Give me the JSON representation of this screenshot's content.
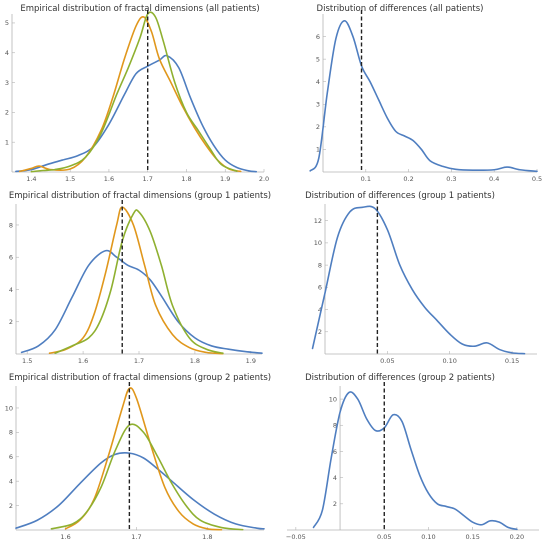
{
  "colors": {
    "blue": "#4f7ec0",
    "orange": "#e0971c",
    "green": "#8fb030",
    "ref": "#222222"
  },
  "chart_data": [
    {
      "id": "p1",
      "type": "line",
      "title": "Empirical distribution of fractal dimensions (all patients)",
      "xlim": [
        1.35,
        2.0
      ],
      "ylim": [
        0,
        5.3
      ],
      "xticks": [
        1.4,
        1.5,
        1.6,
        1.7,
        1.8,
        1.9,
        2.0
      ],
      "xtick_labels": [
        "1.4",
        "1.5",
        "1.6",
        "1.7",
        "1.8",
        "1.9",
        "2.0"
      ],
      "yticks": [
        1,
        2,
        3,
        4,
        5
      ],
      "vline": 1.7,
      "series": [
        {
          "color": "blue",
          "x": [
            1.36,
            1.4,
            1.44,
            1.48,
            1.52,
            1.56,
            1.6,
            1.64,
            1.67,
            1.7,
            1.73,
            1.75,
            1.78,
            1.81,
            1.84,
            1.87,
            1.9,
            1.93,
            1.96,
            1.98
          ],
          "y": [
            0.02,
            0.08,
            0.25,
            0.4,
            0.55,
            0.85,
            1.6,
            2.6,
            3.3,
            3.55,
            3.75,
            3.9,
            3.5,
            2.5,
            1.6,
            0.9,
            0.4,
            0.15,
            0.04,
            0.01
          ]
        },
        {
          "color": "orange",
          "x": [
            1.37,
            1.4,
            1.42,
            1.45,
            1.5,
            1.54,
            1.58,
            1.61,
            1.64,
            1.67,
            1.69,
            1.71,
            1.73,
            1.76,
            1.79,
            1.82,
            1.85,
            1.88,
            1.91,
            1.94
          ],
          "y": [
            0.02,
            0.12,
            0.2,
            0.08,
            0.1,
            0.5,
            1.4,
            2.5,
            3.8,
            4.9,
            5.2,
            4.7,
            3.8,
            3.0,
            2.2,
            1.5,
            0.9,
            0.4,
            0.1,
            0.02
          ]
        },
        {
          "color": "green",
          "x": [
            1.4,
            1.43,
            1.46,
            1.5,
            1.54,
            1.58,
            1.62,
            1.65,
            1.68,
            1.7,
            1.72,
            1.74,
            1.77,
            1.8,
            1.83,
            1.86,
            1.89,
            1.93
          ],
          "y": [
            0.01,
            0.05,
            0.08,
            0.2,
            0.5,
            1.3,
            2.6,
            3.5,
            4.5,
            5.3,
            5.2,
            4.4,
            3.0,
            2.0,
            1.4,
            0.8,
            0.25,
            0.03
          ]
        }
      ]
    },
    {
      "id": "p2",
      "type": "line",
      "title": "Distribution of differences (all patients)",
      "xlim": [
        0.0,
        0.5
      ],
      "ylim": [
        0,
        7.0
      ],
      "xticks": [
        0.1,
        0.2,
        0.3,
        0.4,
        0.5
      ],
      "xtick_labels": [
        "0.1",
        "0.2",
        "0.3",
        "0.4",
        "0.5"
      ],
      "yticks": [
        1,
        2,
        3,
        4,
        5,
        6
      ],
      "vline": 0.09,
      "series": [
        {
          "color": "blue",
          "x": [
            -0.03,
            -0.01,
            0.01,
            0.03,
            0.05,
            0.07,
            0.09,
            0.11,
            0.13,
            0.15,
            0.17,
            0.19,
            0.21,
            0.23,
            0.25,
            0.28,
            0.31,
            0.35,
            0.4,
            0.43,
            0.46,
            0.5
          ],
          "y": [
            0.05,
            0.6,
            3.5,
            5.9,
            6.7,
            6.0,
            4.7,
            4.0,
            3.2,
            2.4,
            1.8,
            1.6,
            1.4,
            1.0,
            0.5,
            0.25,
            0.12,
            0.08,
            0.1,
            0.22,
            0.1,
            0.03
          ]
        }
      ]
    },
    {
      "id": "p3",
      "type": "line",
      "title": "Empirical distribution of fractal dimensions (group 1 patients)",
      "xlim": [
        1.48,
        1.92
      ],
      "ylim": [
        0,
        9.3
      ],
      "xticks": [
        1.5,
        1.6,
        1.7,
        1.8,
        1.9
      ],
      "xtick_labels": [
        "1.5",
        "1.6",
        "1.7",
        "1.8",
        "1.9"
      ],
      "yticks": [
        2,
        4,
        6,
        8
      ],
      "vline": 1.67,
      "series": [
        {
          "color": "blue",
          "x": [
            1.49,
            1.52,
            1.55,
            1.58,
            1.61,
            1.64,
            1.66,
            1.68,
            1.7,
            1.72,
            1.74,
            1.77,
            1.8,
            1.83,
            1.86,
            1.89,
            1.92
          ],
          "y": [
            0.1,
            0.5,
            1.5,
            3.5,
            5.5,
            6.4,
            6.0,
            5.5,
            5.2,
            4.6,
            3.6,
            2.0,
            1.0,
            0.5,
            0.3,
            0.15,
            0.05
          ]
        },
        {
          "color": "orange",
          "x": [
            1.54,
            1.57,
            1.6,
            1.62,
            1.64,
            1.66,
            1.67,
            1.69,
            1.71,
            1.73,
            1.76,
            1.79,
            1.82,
            1.85
          ],
          "y": [
            0.05,
            0.3,
            1.0,
            2.5,
            5.0,
            8.0,
            9.1,
            8.0,
            5.5,
            3.0,
            1.2,
            0.4,
            0.1,
            0.02
          ]
        },
        {
          "color": "green",
          "x": [
            1.55,
            1.58,
            1.61,
            1.63,
            1.65,
            1.67,
            1.69,
            1.7,
            1.72,
            1.74,
            1.76,
            1.79,
            1.82,
            1.85
          ],
          "y": [
            0.05,
            0.5,
            1.0,
            2.0,
            4.0,
            7.0,
            8.7,
            8.8,
            7.6,
            5.5,
            3.0,
            1.0,
            0.3,
            0.05
          ]
        }
      ]
    },
    {
      "id": "p4",
      "type": "line",
      "title": "Distribution of differences (group 1 patients)",
      "xlim": [
        0.0,
        0.17
      ],
      "ylim": [
        0,
        13.5
      ],
      "xticks": [
        0.05,
        0.1,
        0.15
      ],
      "xtick_labels": [
        "0.05",
        "0.10",
        "0.15"
      ],
      "yticks": [
        2,
        4,
        6,
        8,
        10,
        12
      ],
      "vline": 0.042,
      "series": [
        {
          "color": "blue",
          "x": [
            -0.01,
            0.0,
            0.01,
            0.02,
            0.03,
            0.04,
            0.05,
            0.06,
            0.07,
            0.08,
            0.09,
            0.1,
            0.11,
            0.12,
            0.13,
            0.14,
            0.15,
            0.16
          ],
          "y": [
            0.5,
            5.5,
            10.5,
            12.8,
            13.2,
            13.1,
            11.2,
            8.0,
            5.8,
            4.2,
            3.0,
            1.8,
            0.9,
            0.7,
            1.0,
            0.4,
            0.1,
            0.03
          ]
        }
      ]
    },
    {
      "id": "p5",
      "type": "line",
      "title": "Empirical distribution of fractal dimensions (group 2 patients)",
      "xlim": [
        1.53,
        1.88
      ],
      "ylim": [
        0,
        11.8
      ],
      "xticks": [
        1.6,
        1.7,
        1.8
      ],
      "xtick_labels": [
        "1.6",
        "1.7",
        "1.8"
      ],
      "yticks": [
        2,
        4,
        6,
        8,
        10
      ],
      "vline": 1.69,
      "series": [
        {
          "color": "blue",
          "x": [
            1.53,
            1.56,
            1.59,
            1.62,
            1.65,
            1.67,
            1.69,
            1.71,
            1.73,
            1.75,
            1.78,
            1.81,
            1.84,
            1.87,
            1.88
          ],
          "y": [
            0.15,
            0.8,
            2.0,
            3.8,
            5.5,
            6.2,
            6.3,
            5.9,
            5.0,
            4.0,
            2.5,
            1.3,
            0.5,
            0.15,
            0.1
          ]
        },
        {
          "color": "orange",
          "x": [
            1.6,
            1.62,
            1.64,
            1.66,
            1.68,
            1.69,
            1.7,
            1.72,
            1.74,
            1.76,
            1.78,
            1.8,
            1.82
          ],
          "y": [
            0.1,
            0.8,
            2.5,
            6.0,
            10.0,
            11.6,
            10.8,
            7.0,
            3.5,
            1.5,
            0.5,
            0.1,
            0.02
          ]
        },
        {
          "color": "green",
          "x": [
            1.58,
            1.61,
            1.63,
            1.65,
            1.67,
            1.69,
            1.71,
            1.73,
            1.75,
            1.77,
            1.79,
            1.82,
            1.85
          ],
          "y": [
            0.1,
            0.5,
            1.5,
            3.5,
            6.5,
            8.6,
            8.0,
            6.0,
            3.8,
            2.0,
            0.8,
            0.2,
            0.03
          ]
        }
      ]
    },
    {
      "id": "p6",
      "type": "line",
      "title": "Distribution of differences (group 2 patients)",
      "xlim": [
        -0.06,
        0.225
      ],
      "ylim": [
        0,
        11.0
      ],
      "xticks": [
        -0.05,
        0.05,
        0.1,
        0.15,
        0.2
      ],
      "xtick_labels": [
        "−0.05",
        "0.05",
        "0.10",
        "0.15",
        "0.20"
      ],
      "yticks": [
        2,
        4,
        6,
        8,
        10
      ],
      "vline": 0.05,
      "series": [
        {
          "color": "blue",
          "x": [
            -0.03,
            -0.02,
            -0.01,
            0.0,
            0.01,
            0.02,
            0.03,
            0.04,
            0.05,
            0.06,
            0.07,
            0.08,
            0.09,
            0.1,
            0.11,
            0.12,
            0.13,
            0.14,
            0.15,
            0.16,
            0.17,
            0.18,
            0.19,
            0.2
          ],
          "y": [
            0.2,
            1.5,
            5.5,
            9.0,
            10.5,
            10.0,
            8.5,
            7.6,
            7.8,
            8.8,
            8.3,
            6.2,
            4.2,
            2.8,
            2.0,
            1.8,
            1.6,
            1.1,
            0.6,
            0.4,
            0.7,
            0.6,
            0.2,
            0.05
          ]
        }
      ]
    }
  ]
}
